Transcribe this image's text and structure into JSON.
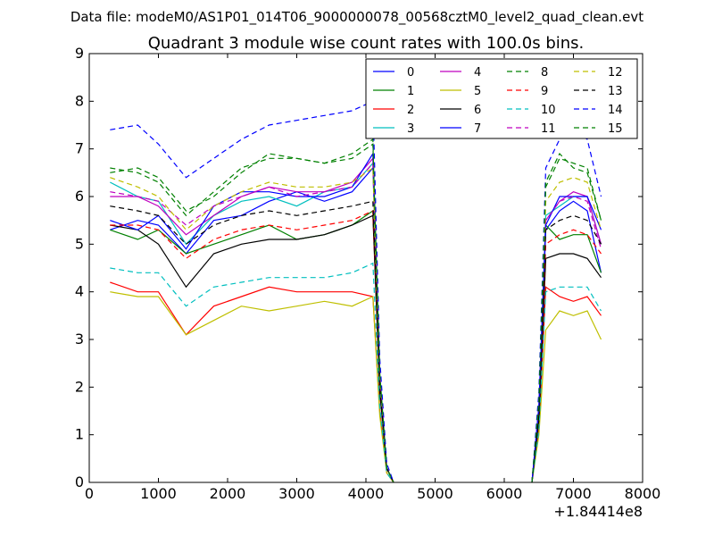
{
  "chart_data": {
    "type": "line",
    "suptitle": "Data file: modeM0/AS1P01_014T06_9000000078_00568cztM0_level2_quad_clean.evt",
    "title": "Quadrant 3 module wise count rates with 100.0s bins.",
    "xlabel": "",
    "ylabel": "",
    "x_offset_label": "+1.84414e8",
    "xlim": [
      0,
      8000
    ],
    "ylim": [
      0,
      9
    ],
    "x_ticks": [
      0,
      1000,
      2000,
      3000,
      4000,
      5000,
      6000,
      7000,
      8000
    ],
    "y_ticks": [
      0,
      1,
      2,
      3,
      4,
      5,
      6,
      7,
      8,
      9
    ],
    "grid": false,
    "legend": {
      "placement": "top-right",
      "columns": 4
    },
    "series": [
      {
        "name": "0",
        "color": "#0000ff",
        "dash": "solid",
        "segments": [
          {
            "x": [
              300,
              700,
              1000,
              1400,
              1800,
              2200,
              2600,
              3000,
              3400,
              3800,
              4100,
              4200,
              4300,
              4400
            ],
            "y": [
              5.3,
              5.5,
              5.4,
              4.8,
              5.5,
              5.6,
              5.9,
              6.1,
              5.9,
              6.1,
              6.6,
              2.0,
              0.3,
              0.0
            ]
          },
          {
            "x": [
              6400,
              6500,
              6600,
              6800,
              7000,
              7200,
              7400
            ],
            "y": [
              0.0,
              1.5,
              5.3,
              5.7,
              5.9,
              5.7,
              4.4
            ]
          }
        ]
      },
      {
        "name": "1",
        "color": "#008000",
        "dash": "solid",
        "segments": [
          {
            "x": [
              300,
              700,
              1000,
              1400,
              1800,
              2200,
              2600,
              3000,
              3400,
              3800,
              4100,
              4200,
              4300,
              4400
            ],
            "y": [
              5.3,
              5.1,
              5.3,
              4.8,
              5.0,
              5.2,
              5.4,
              5.1,
              5.2,
              5.4,
              5.7,
              2.0,
              0.3,
              0.0
            ]
          },
          {
            "x": [
              6400,
              6500,
              6600,
              6800,
              7000,
              7200,
              7400
            ],
            "y": [
              0.0,
              1.4,
              5.4,
              5.1,
              5.2,
              5.2,
              4.4
            ]
          }
        ]
      },
      {
        "name": "2",
        "color": "#ff0000",
        "dash": "solid",
        "segments": [
          {
            "x": [
              300,
              700,
              1000,
              1400,
              1800,
              2200,
              2600,
              3000,
              3400,
              3800,
              4100,
              4200,
              4300,
              4400
            ],
            "y": [
              4.2,
              4.0,
              4.0,
              3.1,
              3.7,
              3.9,
              4.1,
              4.0,
              4.0,
              4.0,
              3.9,
              1.5,
              0.2,
              0.0
            ]
          },
          {
            "x": [
              6400,
              6500,
              6600,
              6800,
              7000,
              7200,
              7400
            ],
            "y": [
              0.0,
              1.1,
              4.1,
              3.9,
              3.8,
              3.9,
              3.5
            ]
          }
        ]
      },
      {
        "name": "3",
        "color": "#00bfbf",
        "dash": "solid",
        "segments": [
          {
            "x": [
              300,
              700,
              1000,
              1400,
              1800,
              2200,
              2600,
              3000,
              3400,
              3800,
              4100,
              4200,
              4300,
              4400
            ],
            "y": [
              6.3,
              6.0,
              5.9,
              5.0,
              5.6,
              5.9,
              6.0,
              5.8,
              6.1,
              6.2,
              6.7,
              2.1,
              0.3,
              0.0
            ]
          },
          {
            "x": [
              6400,
              6500,
              6600,
              6800,
              7000,
              7200,
              7400
            ],
            "y": [
              0.0,
              1.5,
              5.6,
              5.8,
              6.0,
              6.0,
              5.0
            ]
          }
        ]
      },
      {
        "name": "4",
        "color": "#bf00bf",
        "dash": "solid",
        "segments": [
          {
            "x": [
              300,
              700,
              1000,
              1400,
              1800,
              2200,
              2600,
              3000,
              3400,
              3800,
              4100,
              4200,
              4300,
              4400
            ],
            "y": [
              6.0,
              6.0,
              5.8,
              5.2,
              5.6,
              6.0,
              6.2,
              6.1,
              6.1,
              6.3,
              6.8,
              2.2,
              0.3,
              0.0
            ]
          },
          {
            "x": [
              6400,
              6500,
              6600,
              6800,
              7000,
              7200,
              7400
            ],
            "y": [
              0.0,
              1.6,
              5.5,
              5.9,
              6.1,
              6.0,
              5.0
            ]
          }
        ]
      },
      {
        "name": "5",
        "color": "#bfbf00",
        "dash": "solid",
        "segments": [
          {
            "x": [
              300,
              700,
              1000,
              1400,
              1800,
              2200,
              2600,
              3000,
              3400,
              3800,
              4100,
              4200,
              4300,
              4400
            ],
            "y": [
              4.0,
              3.9,
              3.9,
              3.1,
              3.4,
              3.7,
              3.6,
              3.7,
              3.8,
              3.7,
              3.9,
              1.4,
              0.2,
              0.0
            ]
          },
          {
            "x": [
              6400,
              6500,
              6600,
              6800,
              7000,
              7200,
              7400
            ],
            "y": [
              0.0,
              1.0,
              3.2,
              3.6,
              3.5,
              3.6,
              3.0
            ]
          }
        ]
      },
      {
        "name": "6",
        "color": "#000000",
        "dash": "solid",
        "segments": [
          {
            "x": [
              300,
              700,
              1000,
              1400,
              1800,
              2200,
              2600,
              3000,
              3400,
              3800,
              4100,
              4200,
              4300,
              4400
            ],
            "y": [
              5.4,
              5.3,
              5.0,
              4.1,
              4.8,
              5.0,
              5.1,
              5.1,
              5.2,
              5.4,
              5.6,
              1.9,
              0.3,
              0.0
            ]
          },
          {
            "x": [
              6400,
              6500,
              6600,
              6800,
              7000,
              7200,
              7400
            ],
            "y": [
              0.0,
              1.3,
              4.7,
              4.8,
              4.8,
              4.7,
              4.3
            ]
          }
        ]
      },
      {
        "name": "7",
        "color": "#0000ff",
        "dash": "solid",
        "segments": [
          {
            "x": [
              300,
              700,
              1000,
              1400,
              1800,
              2200,
              2600,
              3000,
              3400,
              3800,
              4100,
              4200,
              4300,
              4400
            ],
            "y": [
              5.5,
              5.3,
              5.6,
              4.9,
              5.8,
              6.1,
              6.1,
              6.0,
              6.0,
              6.2,
              6.9,
              2.1,
              0.3,
              0.0
            ]
          },
          {
            "x": [
              6400,
              6500,
              6600,
              6800,
              7000,
              7200,
              7400
            ],
            "y": [
              0.0,
              1.6,
              5.4,
              6.0,
              6.0,
              6.0,
              5.3
            ]
          }
        ]
      },
      {
        "name": "8",
        "color": "#008000",
        "dash": "dashed",
        "segments": [
          {
            "x": [
              300,
              700,
              1000,
              1400,
              1800,
              2200,
              2600,
              3000,
              3400,
              3800,
              4100,
              4200,
              4300,
              4400
            ],
            "y": [
              6.5,
              6.6,
              6.4,
              5.7,
              6.0,
              6.5,
              6.9,
              6.8,
              6.7,
              6.9,
              7.2,
              2.3,
              0.3,
              0.0
            ]
          },
          {
            "x": [
              6400,
              6500,
              6600,
              6800,
              7000,
              7200,
              7400
            ],
            "y": [
              0.0,
              1.7,
              6.2,
              6.8,
              6.7,
              6.6,
              5.5
            ]
          }
        ]
      },
      {
        "name": "9",
        "color": "#ff0000",
        "dash": "dashed",
        "segments": [
          {
            "x": [
              300,
              700,
              1000,
              1400,
              1800,
              2200,
              2600,
              3000,
              3400,
              3800,
              4100,
              4200,
              4300,
              4400
            ],
            "y": [
              5.4,
              5.4,
              5.3,
              4.7,
              5.1,
              5.3,
              5.4,
              5.3,
              5.4,
              5.5,
              5.7,
              2.0,
              0.3,
              0.0
            ]
          },
          {
            "x": [
              6400,
              6500,
              6600,
              6800,
              7000,
              7200,
              7400
            ],
            "y": [
              0.0,
              1.4,
              5.0,
              5.2,
              5.3,
              5.2,
              4.8
            ]
          }
        ]
      },
      {
        "name": "10",
        "color": "#00bfbf",
        "dash": "dashed",
        "segments": [
          {
            "x": [
              300,
              700,
              1000,
              1400,
              1800,
              2200,
              2600,
              3000,
              3400,
              3800,
              4100,
              4200,
              4300,
              4400
            ],
            "y": [
              4.5,
              4.4,
              4.4,
              3.7,
              4.1,
              4.2,
              4.3,
              4.3,
              4.3,
              4.4,
              4.6,
              1.6,
              0.2,
              0.0
            ]
          },
          {
            "x": [
              6400,
              6500,
              6600,
              6800,
              7000,
              7200,
              7400
            ],
            "y": [
              0.0,
              1.1,
              4.0,
              4.1,
              4.1,
              4.1,
              3.6
            ]
          }
        ]
      },
      {
        "name": "11",
        "color": "#bf00bf",
        "dash": "dashed",
        "segments": [
          {
            "x": [
              300,
              700,
              1000,
              1400,
              1800,
              2200,
              2600,
              3000,
              3400,
              3800,
              4100,
              4200,
              4300,
              4400
            ],
            "y": [
              6.1,
              6.0,
              5.9,
              5.4,
              5.8,
              6.0,
              6.2,
              6.0,
              6.1,
              6.2,
              6.7,
              2.2,
              0.3,
              0.0
            ]
          },
          {
            "x": [
              6400,
              6500,
              6600,
              6800,
              7000,
              7200,
              7400
            ],
            "y": [
              0.0,
              1.6,
              5.5,
              5.9,
              6.0,
              5.9,
              4.9
            ]
          }
        ]
      },
      {
        "name": "12",
        "color": "#bfbf00",
        "dash": "dashed",
        "segments": [
          {
            "x": [
              300,
              700,
              1000,
              1400,
              1800,
              2200,
              2600,
              3000,
              3400,
              3800,
              4100,
              4200,
              4300,
              4400
            ],
            "y": [
              6.4,
              6.2,
              6.0,
              5.3,
              5.8,
              6.1,
              6.3,
              6.2,
              6.2,
              6.3,
              6.6,
              2.2,
              0.3,
              0.0
            ]
          },
          {
            "x": [
              6400,
              6500,
              6600,
              6800,
              7000,
              7200,
              7400
            ],
            "y": [
              0.0,
              1.6,
              5.9,
              6.3,
              6.4,
              6.3,
              5.3
            ]
          }
        ]
      },
      {
        "name": "13",
        "color": "#000000",
        "dash": "dashed",
        "segments": [
          {
            "x": [
              300,
              700,
              1000,
              1400,
              1800,
              2200,
              2600,
              3000,
              3400,
              3800,
              4100,
              4200,
              4300,
              4400
            ],
            "y": [
              5.8,
              5.7,
              5.6,
              5.0,
              5.4,
              5.6,
              5.7,
              5.6,
              5.7,
              5.8,
              5.9,
              2.0,
              0.3,
              0.0
            ]
          },
          {
            "x": [
              6400,
              6500,
              6600,
              6800,
              7000,
              7200,
              7400
            ],
            "y": [
              0.0,
              1.4,
              5.3,
              5.5,
              5.6,
              5.5,
              5.0
            ]
          }
        ]
      },
      {
        "name": "14",
        "color": "#0000ff",
        "dash": "dashed",
        "segments": [
          {
            "x": [
              300,
              700,
              1000,
              1400,
              1800,
              2200,
              2600,
              3000,
              3400,
              3800,
              4100,
              4200,
              4300,
              4400
            ],
            "y": [
              7.4,
              7.5,
              7.1,
              6.4,
              6.8,
              7.2,
              7.5,
              7.6,
              7.7,
              7.8,
              8.0,
              2.6,
              0.4,
              0.0
            ]
          },
          {
            "x": [
              6400,
              6500,
              6600,
              6800,
              7000,
              7200,
              7400
            ],
            "y": [
              0.0,
              1.9,
              6.6,
              7.2,
              7.4,
              7.2,
              6.0
            ]
          }
        ]
      },
      {
        "name": "15",
        "color": "#008000",
        "dash": "dashed",
        "segments": [
          {
            "x": [
              300,
              700,
              1000,
              1400,
              1800,
              2200,
              2600,
              3000,
              3400,
              3800,
              4100,
              4200,
              4300,
              4400
            ],
            "y": [
              6.6,
              6.5,
              6.3,
              5.6,
              6.1,
              6.6,
              6.8,
              6.8,
              6.7,
              6.8,
              7.1,
              2.3,
              0.3,
              0.0
            ]
          },
          {
            "x": [
              6400,
              6500,
              6600,
              6800,
              7000,
              7200,
              7400
            ],
            "y": [
              0.0,
              1.7,
              6.3,
              6.9,
              6.6,
              6.5,
              5.5
            ]
          }
        ]
      }
    ]
  }
}
